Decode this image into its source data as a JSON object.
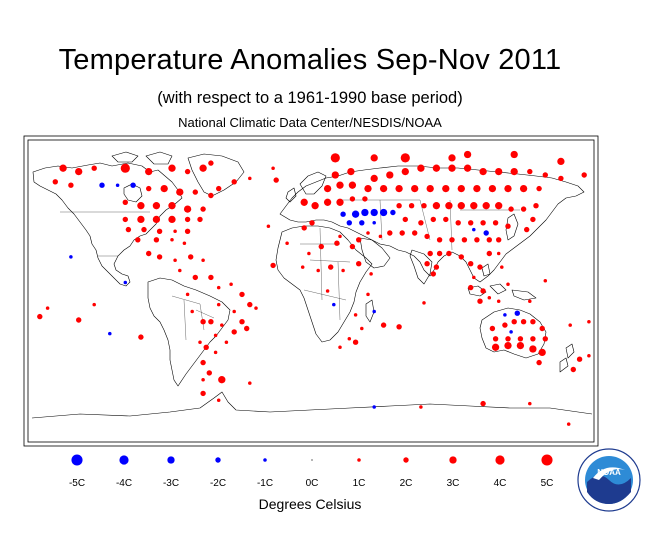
{
  "header": {
    "title": "Temperature Anomalies Sep-Nov 2011",
    "subtitle": "(with respect to a 1961-1990 base period)",
    "source": "National Climatic Data Center/NESDIS/NOAA"
  },
  "legend": {
    "caption": "Degrees Celsius",
    "items": [
      {
        "label": "-5C",
        "value": -5
      },
      {
        "label": "-4C",
        "value": -4
      },
      {
        "label": "-3C",
        "value": -3
      },
      {
        "label": "-2C",
        "value": -2
      },
      {
        "label": "-1C",
        "value": -1
      },
      {
        "label": "0C",
        "value": 0
      },
      {
        "label": "1C",
        "value": 1
      },
      {
        "label": "2C",
        "value": 2
      },
      {
        "label": "3C",
        "value": 3
      },
      {
        "label": "4C",
        "value": 4
      },
      {
        "label": "5C",
        "value": 5
      }
    ]
  },
  "colors": {
    "warm": "#ff0000",
    "cold": "#0000ff",
    "coast": "#000000",
    "logo_blue": "#1e3b8f",
    "logo_sky": "#2e8bd6"
  },
  "logo": {
    "name": "noaa-logo",
    "text": "NOAA"
  },
  "map": {
    "projection": "equirectangular",
    "anomaly_points": [
      {
        "lon": -160,
        "lat": 72,
        "v": 3
      },
      {
        "lon": -150,
        "lat": 70,
        "v": 3
      },
      {
        "lon": -140,
        "lat": 72,
        "v": 2
      },
      {
        "lon": -165,
        "lat": 64,
        "v": 2
      },
      {
        "lon": -155,
        "lat": 62,
        "v": 2
      },
      {
        "lon": -120,
        "lat": 72,
        "v": 4
      },
      {
        "lon": -105,
        "lat": 70,
        "v": 3
      },
      {
        "lon": -90,
        "lat": 72,
        "v": 3
      },
      {
        "lon": -80,
        "lat": 70,
        "v": 2
      },
      {
        "lon": -70,
        "lat": 72,
        "v": 3
      },
      {
        "lon": -135,
        "lat": 62,
        "v": -2
      },
      {
        "lon": -125,
        "lat": 62,
        "v": -1
      },
      {
        "lon": -115,
        "lat": 62,
        "v": -2
      },
      {
        "lon": -105,
        "lat": 60,
        "v": 2
      },
      {
        "lon": -95,
        "lat": 60,
        "v": 3
      },
      {
        "lon": -85,
        "lat": 58,
        "v": 3
      },
      {
        "lon": -75,
        "lat": 58,
        "v": 2
      },
      {
        "lon": -65,
        "lat": 56,
        "v": 2
      },
      {
        "lon": -60,
        "lat": 60,
        "v": 2
      },
      {
        "lon": -120,
        "lat": 52,
        "v": 2
      },
      {
        "lon": -110,
        "lat": 50,
        "v": 3
      },
      {
        "lon": -100,
        "lat": 50,
        "v": 3
      },
      {
        "lon": -90,
        "lat": 50,
        "v": 3
      },
      {
        "lon": -80,
        "lat": 48,
        "v": 3
      },
      {
        "lon": -70,
        "lat": 48,
        "v": 2
      },
      {
        "lon": -120,
        "lat": 42,
        "v": 2
      },
      {
        "lon": -110,
        "lat": 42,
        "v": 3
      },
      {
        "lon": -100,
        "lat": 42,
        "v": 3
      },
      {
        "lon": -90,
        "lat": 42,
        "v": 3
      },
      {
        "lon": -80,
        "lat": 42,
        "v": 2
      },
      {
        "lon": -72,
        "lat": 42,
        "v": 2
      },
      {
        "lon": -118,
        "lat": 36,
        "v": 2
      },
      {
        "lon": -108,
        "lat": 36,
        "v": 2
      },
      {
        "lon": -98,
        "lat": 35,
        "v": 2
      },
      {
        "lon": -88,
        "lat": 35,
        "v": 1
      },
      {
        "lon": -80,
        "lat": 35,
        "v": 2
      },
      {
        "lon": -112,
        "lat": 30,
        "v": 2
      },
      {
        "lon": -100,
        "lat": 30,
        "v": 2
      },
      {
        "lon": -90,
        "lat": 30,
        "v": 1
      },
      {
        "lon": -82,
        "lat": 28,
        "v": 1
      },
      {
        "lon": -105,
        "lat": 22,
        "v": 2
      },
      {
        "lon": -98,
        "lat": 20,
        "v": 2
      },
      {
        "lon": -88,
        "lat": 18,
        "v": 1
      },
      {
        "lon": -78,
        "lat": 20,
        "v": 2
      },
      {
        "lon": -70,
        "lat": 18,
        "v": 1
      },
      {
        "lon": -85,
        "lat": 12,
        "v": 1
      },
      {
        "lon": -75,
        "lat": 8,
        "v": 2
      },
      {
        "lon": -65,
        "lat": 8,
        "v": 2
      },
      {
        "lon": -60,
        "lat": 2,
        "v": 1
      },
      {
        "lon": -52,
        "lat": 4,
        "v": 1
      },
      {
        "lon": -45,
        "lat": -2,
        "v": 2
      },
      {
        "lon": -40,
        "lat": -8,
        "v": 2
      },
      {
        "lon": -36,
        "lat": -10,
        "v": 1
      },
      {
        "lon": -50,
        "lat": -12,
        "v": 1
      },
      {
        "lon": -60,
        "lat": -8,
        "v": 1
      },
      {
        "lon": -45,
        "lat": -18,
        "v": 2
      },
      {
        "lon": -50,
        "lat": -24,
        "v": 2
      },
      {
        "lon": -42,
        "lat": -22,
        "v": 2
      },
      {
        "lon": -58,
        "lat": -20,
        "v": 1
      },
      {
        "lon": -65,
        "lat": -18,
        "v": 2
      },
      {
        "lon": -70,
        "lat": -18,
        "v": 2
      },
      {
        "lon": -62,
        "lat": -26,
        "v": 1
      },
      {
        "lon": -55,
        "lat": -30,
        "v": 1
      },
      {
        "lon": -68,
        "lat": -33,
        "v": 2
      },
      {
        "lon": -62,
        "lat": -36,
        "v": 1
      },
      {
        "lon": -70,
        "lat": -42,
        "v": 2
      },
      {
        "lon": -66,
        "lat": -48,
        "v": 2
      },
      {
        "lon": -70,
        "lat": -52,
        "v": 1
      },
      {
        "lon": -72,
        "lat": -30,
        "v": 1
      },
      {
        "lon": -80,
        "lat": -2,
        "v": 1
      },
      {
        "lon": -77,
        "lat": -12,
        "v": 1
      },
      {
        "lon": -155,
        "lat": 20,
        "v": -1
      },
      {
        "lon": -175,
        "lat": -15,
        "v": 2
      },
      {
        "lon": -170,
        "lat": -10,
        "v": 1
      },
      {
        "lon": -150,
        "lat": -17,
        "v": 2
      },
      {
        "lon": -140,
        "lat": -8,
        "v": 1
      },
      {
        "lon": -120,
        "lat": 5,
        "v": -1
      },
      {
        "lon": -110,
        "lat": -27,
        "v": 2
      },
      {
        "lon": -130,
        "lat": -25,
        "v": -1
      },
      {
        "lon": -23,
        "lat": 65,
        "v": 2
      },
      {
        "lon": -50,
        "lat": 64,
        "v": 2
      },
      {
        "lon": -40,
        "lat": 66,
        "v": 1
      },
      {
        "lon": -25,
        "lat": 72,
        "v": 1
      },
      {
        "lon": -65,
        "lat": 75,
        "v": 2
      },
      {
        "lon": -28,
        "lat": 38,
        "v": 1
      },
      {
        "lon": -16,
        "lat": 28,
        "v": 1
      },
      {
        "lon": -25,
        "lat": 15,
        "v": 2
      },
      {
        "lon": -5,
        "lat": 37,
        "v": 2
      },
      {
        "lon": 0,
        "lat": 40,
        "v": 2
      },
      {
        "lon": -5,
        "lat": 52,
        "v": 3
      },
      {
        "lon": 2,
        "lat": 50,
        "v": 3
      },
      {
        "lon": 10,
        "lat": 52,
        "v": 3
      },
      {
        "lon": 18,
        "lat": 52,
        "v": 3
      },
      {
        "lon": 26,
        "lat": 54,
        "v": 2
      },
      {
        "lon": 34,
        "lat": 54,
        "v": 2
      },
      {
        "lon": 10,
        "lat": 60,
        "v": 3
      },
      {
        "lon": 18,
        "lat": 62,
        "v": 3
      },
      {
        "lon": 26,
        "lat": 62,
        "v": 3
      },
      {
        "lon": 15,
        "lat": 68,
        "v": 3
      },
      {
        "lon": 25,
        "lat": 70,
        "v": 3
      },
      {
        "lon": 40,
        "lat": 66,
        "v": 3
      },
      {
        "lon": 50,
        "lat": 68,
        "v": 3
      },
      {
        "lon": 60,
        "lat": 70,
        "v": 3
      },
      {
        "lon": 70,
        "lat": 72,
        "v": 3
      },
      {
        "lon": 80,
        "lat": 72,
        "v": 3
      },
      {
        "lon": 90,
        "lat": 72,
        "v": 3
      },
      {
        "lon": 100,
        "lat": 72,
        "v": 3
      },
      {
        "lon": 110,
        "lat": 70,
        "v": 3
      },
      {
        "lon": 120,
        "lat": 70,
        "v": 3
      },
      {
        "lon": 130,
        "lat": 70,
        "v": 3
      },
      {
        "lon": 140,
        "lat": 70,
        "v": 2
      },
      {
        "lon": 150,
        "lat": 68,
        "v": 2
      },
      {
        "lon": 160,
        "lat": 66,
        "v": 2
      },
      {
        "lon": 15,
        "lat": 78,
        "v": 4
      },
      {
        "lon": 40,
        "lat": 78,
        "v": 3
      },
      {
        "lon": 60,
        "lat": 78,
        "v": 4
      },
      {
        "lon": 90,
        "lat": 78,
        "v": 3
      },
      {
        "lon": 100,
        "lat": 80,
        "v": 3
      },
      {
        "lon": 130,
        "lat": 80,
        "v": 3
      },
      {
        "lon": 160,
        "lat": 76,
        "v": 3
      },
      {
        "lon": 175,
        "lat": 68,
        "v": 2
      },
      {
        "lon": 36,
        "lat": 60,
        "v": 3
      },
      {
        "lon": 46,
        "lat": 60,
        "v": 3
      },
      {
        "lon": 56,
        "lat": 60,
        "v": 3
      },
      {
        "lon": 66,
        "lat": 60,
        "v": 3
      },
      {
        "lon": 76,
        "lat": 60,
        "v": 3
      },
      {
        "lon": 86,
        "lat": 60,
        "v": 3
      },
      {
        "lon": 96,
        "lat": 60,
        "v": 3
      },
      {
        "lon": 106,
        "lat": 60,
        "v": 3
      },
      {
        "lon": 116,
        "lat": 60,
        "v": 3
      },
      {
        "lon": 126,
        "lat": 60,
        "v": 3
      },
      {
        "lon": 136,
        "lat": 60,
        "v": 3
      },
      {
        "lon": 146,
        "lat": 60,
        "v": 2
      },
      {
        "lon": 20,
        "lat": 45,
        "v": -2
      },
      {
        "lon": 28,
        "lat": 45,
        "v": -3
      },
      {
        "lon": 34,
        "lat": 46,
        "v": -3
      },
      {
        "lon": 40,
        "lat": 46,
        "v": -3
      },
      {
        "lon": 46,
        "lat": 46,
        "v": -3
      },
      {
        "lon": 52,
        "lat": 46,
        "v": -2
      },
      {
        "lon": 24,
        "lat": 40,
        "v": -2
      },
      {
        "lon": 32,
        "lat": 40,
        "v": -2
      },
      {
        "lon": 40,
        "lat": 40,
        "v": -1
      },
      {
        "lon": 56,
        "lat": 50,
        "v": 2
      },
      {
        "lon": 64,
        "lat": 50,
        "v": 2
      },
      {
        "lon": 72,
        "lat": 50,
        "v": 2
      },
      {
        "lon": 80,
        "lat": 50,
        "v": 3
      },
      {
        "lon": 88,
        "lat": 50,
        "v": 3
      },
      {
        "lon": 96,
        "lat": 50,
        "v": 3
      },
      {
        "lon": 104,
        "lat": 50,
        "v": 3
      },
      {
        "lon": 112,
        "lat": 50,
        "v": 3
      },
      {
        "lon": 120,
        "lat": 50,
        "v": 3
      },
      {
        "lon": 128,
        "lat": 48,
        "v": 2
      },
      {
        "lon": 136,
        "lat": 48,
        "v": 2
      },
      {
        "lon": 144,
        "lat": 50,
        "v": 2
      },
      {
        "lon": 60,
        "lat": 42,
        "v": 2
      },
      {
        "lon": 70,
        "lat": 40,
        "v": 2
      },
      {
        "lon": 78,
        "lat": 42,
        "v": 2
      },
      {
        "lon": 86,
        "lat": 42,
        "v": 2
      },
      {
        "lon": 94,
        "lat": 40,
        "v": 2
      },
      {
        "lon": 102,
        "lat": 40,
        "v": 2
      },
      {
        "lon": 110,
        "lat": 40,
        "v": 2
      },
      {
        "lon": 118,
        "lat": 40,
        "v": 2
      },
      {
        "lon": 126,
        "lat": 38,
        "v": 2
      },
      {
        "lon": 138,
        "lat": 36,
        "v": 2
      },
      {
        "lon": 142,
        "lat": 42,
        "v": 2
      },
      {
        "lon": 50,
        "lat": 34,
        "v": 2
      },
      {
        "lon": 58,
        "lat": 34,
        "v": 2
      },
      {
        "lon": 66,
        "lat": 34,
        "v": 2
      },
      {
        "lon": 74,
        "lat": 32,
        "v": 2
      },
      {
        "lon": 82,
        "lat": 30,
        "v": 2
      },
      {
        "lon": 90,
        "lat": 30,
        "v": 2
      },
      {
        "lon": 98,
        "lat": 30,
        "v": 2
      },
      {
        "lon": 106,
        "lat": 30,
        "v": 2
      },
      {
        "lon": 114,
        "lat": 30,
        "v": 2
      },
      {
        "lon": 120,
        "lat": 30,
        "v": 2
      },
      {
        "lon": 104,
        "lat": 36,
        "v": -1
      },
      {
        "lon": 112,
        "lat": 34,
        "v": -2
      },
      {
        "lon": 36,
        "lat": 34,
        "v": 1
      },
      {
        "lon": 44,
        "lat": 32,
        "v": 1
      },
      {
        "lon": 76,
        "lat": 22,
        "v": 2
      },
      {
        "lon": 82,
        "lat": 22,
        "v": 2
      },
      {
        "lon": 88,
        "lat": 22,
        "v": 2
      },
      {
        "lon": 74,
        "lat": 16,
        "v": 2
      },
      {
        "lon": 80,
        "lat": 14,
        "v": 2
      },
      {
        "lon": 78,
        "lat": 10,
        "v": 2
      },
      {
        "lon": 96,
        "lat": 20,
        "v": 2
      },
      {
        "lon": 102,
        "lat": 16,
        "v": 2
      },
      {
        "lon": 108,
        "lat": 14,
        "v": 2
      },
      {
        "lon": 114,
        "lat": 22,
        "v": 2
      },
      {
        "lon": 120,
        "lat": 22,
        "v": 1
      },
      {
        "lon": 122,
        "lat": 14,
        "v": 1
      },
      {
        "lon": 104,
        "lat": 8,
        "v": 1
      },
      {
        "lon": 102,
        "lat": 2,
        "v": 2
      },
      {
        "lon": 110,
        "lat": 0,
        "v": 2
      },
      {
        "lon": 114,
        "lat": -4,
        "v": 1
      },
      {
        "lon": 108,
        "lat": -6,
        "v": 2
      },
      {
        "lon": 120,
        "lat": -6,
        "v": 1
      },
      {
        "lon": 126,
        "lat": 4,
        "v": 1
      },
      {
        "lon": 140,
        "lat": -6,
        "v": 1
      },
      {
        "lon": 150,
        "lat": 6,
        "v": 1
      },
      {
        "lon": 116,
        "lat": -22,
        "v": 2
      },
      {
        "lon": 124,
        "lat": -20,
        "v": 2
      },
      {
        "lon": 130,
        "lat": -18,
        "v": 2
      },
      {
        "lon": 136,
        "lat": -18,
        "v": 2
      },
      {
        "lon": 142,
        "lat": -18,
        "v": 2
      },
      {
        "lon": 148,
        "lat": -22,
        "v": 2
      },
      {
        "lon": 118,
        "lat": -28,
        "v": 2
      },
      {
        "lon": 126,
        "lat": -28,
        "v": 2
      },
      {
        "lon": 134,
        "lat": -28,
        "v": 2
      },
      {
        "lon": 142,
        "lat": -28,
        "v": 2
      },
      {
        "lon": 150,
        "lat": -28,
        "v": 2
      },
      {
        "lon": 118,
        "lat": -33,
        "v": 3
      },
      {
        "lon": 126,
        "lat": -32,
        "v": 3
      },
      {
        "lon": 134,
        "lat": -32,
        "v": 3
      },
      {
        "lon": 142,
        "lat": -34,
        "v": 3
      },
      {
        "lon": 148,
        "lat": -36,
        "v": 3
      },
      {
        "lon": 146,
        "lat": -42,
        "v": 2
      },
      {
        "lon": 132,
        "lat": -13,
        "v": -2
      },
      {
        "lon": 124,
        "lat": -14,
        "v": -1
      },
      {
        "lon": 128,
        "lat": -24,
        "v": -1
      },
      {
        "lon": 172,
        "lat": -40,
        "v": 2
      },
      {
        "lon": 168,
        "lat": -46,
        "v": 2
      },
      {
        "lon": 178,
        "lat": -38,
        "v": 1
      },
      {
        "lon": 166,
        "lat": -20,
        "v": 1
      },
      {
        "lon": 178,
        "lat": -18,
        "v": 1
      },
      {
        "lon": 4,
        "lat": 12,
        "v": 1
      },
      {
        "lon": 12,
        "lat": 14,
        "v": 2
      },
      {
        "lon": -6,
        "lat": 14,
        "v": 1
      },
      {
        "lon": 20,
        "lat": 12,
        "v": 1
      },
      {
        "lon": 30,
        "lat": 16,
        "v": 2
      },
      {
        "lon": 38,
        "lat": 10,
        "v": 1
      },
      {
        "lon": 6,
        "lat": 26,
        "v": 2
      },
      {
        "lon": 16,
        "lat": 28,
        "v": 2
      },
      {
        "lon": 26,
        "lat": 26,
        "v": 2
      },
      {
        "lon": -2,
        "lat": 22,
        "v": 1
      },
      {
        "lon": 10,
        "lat": 0,
        "v": 1
      },
      {
        "lon": 36,
        "lat": -2,
        "v": 1
      },
      {
        "lon": 28,
        "lat": -14,
        "v": 1
      },
      {
        "lon": 32,
        "lat": -22,
        "v": 1
      },
      {
        "lon": 24,
        "lat": -28,
        "v": 1
      },
      {
        "lon": 18,
        "lat": -33,
        "v": 1
      },
      {
        "lon": 28,
        "lat": -30,
        "v": 2
      },
      {
        "lon": 46,
        "lat": -20,
        "v": 2
      },
      {
        "lon": 56,
        "lat": -21,
        "v": 2
      },
      {
        "lon": 72,
        "lat": -7,
        "v": 1
      },
      {
        "lon": 40,
        "lat": -12,
        "v": -1
      },
      {
        "lon": 14,
        "lat": -8,
        "v": -1
      },
      {
        "lon": 18,
        "lat": 32,
        "v": 1
      },
      {
        "lon": 30,
        "lat": 30,
        "v": 2
      },
      {
        "lon": -70,
        "lat": -60,
        "v": 2
      },
      {
        "lon": -58,
        "lat": -52,
        "v": 3
      },
      {
        "lon": -40,
        "lat": -54,
        "v": 1
      },
      {
        "lon": 40,
        "lat": -68,
        "v": -1
      },
      {
        "lon": 70,
        "lat": -68,
        "v": 1
      },
      {
        "lon": 110,
        "lat": -66,
        "v": 2
      },
      {
        "lon": 165,
        "lat": -78,
        "v": 1
      },
      {
        "lon": 140,
        "lat": -66,
        "v": 1
      },
      {
        "lon": -60,
        "lat": -64,
        "v": 1
      }
    ]
  }
}
